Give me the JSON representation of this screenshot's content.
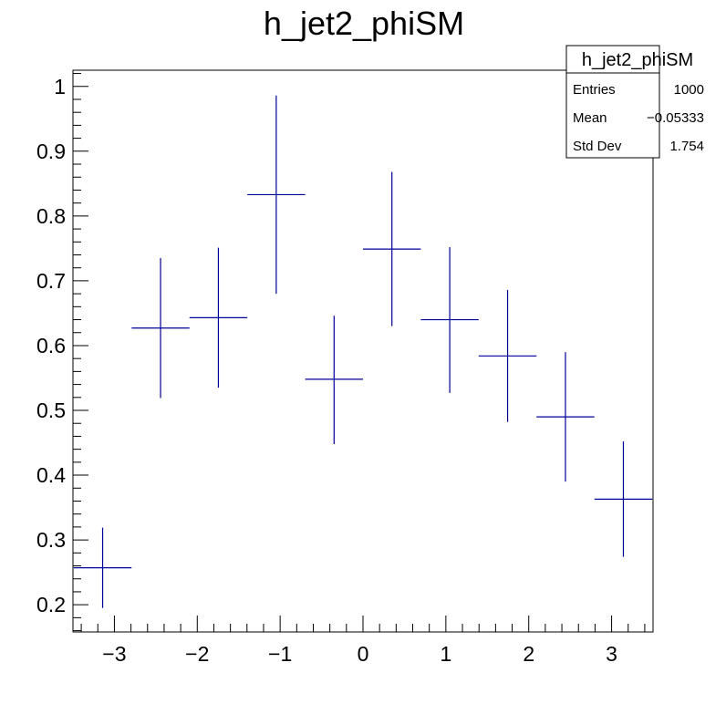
{
  "chart_data": {
    "type": "scatter",
    "title": "h_jet2_phiSM",
    "xlabel": "",
    "ylabel": "",
    "xlim": [
      -3.5,
      3.5
    ],
    "ylim": [
      0.158,
      1.025
    ],
    "x_ticks": [
      "−3",
      "−2",
      "−1",
      "0",
      "1",
      "2",
      "3"
    ],
    "x_tick_values": [
      -3,
      -2,
      -1,
      0,
      1,
      2,
      3
    ],
    "y_ticks": [
      "0.2",
      "0.3",
      "0.4",
      "0.5",
      "0.6",
      "0.7",
      "0.8",
      "0.9",
      "1"
    ],
    "y_tick_values": [
      0.2,
      0.3,
      0.4,
      0.5,
      0.6,
      0.7,
      0.8,
      0.9,
      1.0
    ],
    "grid": false,
    "series": [
      {
        "color": "#000099",
        "x": [
          -3.142,
          -2.443,
          -1.745,
          -1.047,
          -0.349,
          0.349,
          1.047,
          1.745,
          2.443,
          3.142
        ],
        "x_halfwidth": 0.349,
        "y": [
          0.257,
          0.627,
          0.643,
          0.833,
          0.548,
          0.749,
          0.64,
          0.584,
          0.49,
          0.363
        ],
        "y_err_low": [
          0.062,
          0.108,
          0.108,
          0.153,
          0.1,
          0.119,
          0.113,
          0.102,
          0.1,
          0.089
        ],
        "y_err_high": [
          0.062,
          0.108,
          0.108,
          0.153,
          0.098,
          0.119,
          0.112,
          0.102,
          0.1,
          0.089
        ]
      }
    ]
  },
  "stats": {
    "title": "h_jet2_phiSM",
    "rows": [
      {
        "label": "Entries",
        "value": "1000"
      },
      {
        "label": "Mean",
        "value": "−0.05333"
      },
      {
        "label": "Std Dev",
        "value": "1.754"
      }
    ]
  }
}
